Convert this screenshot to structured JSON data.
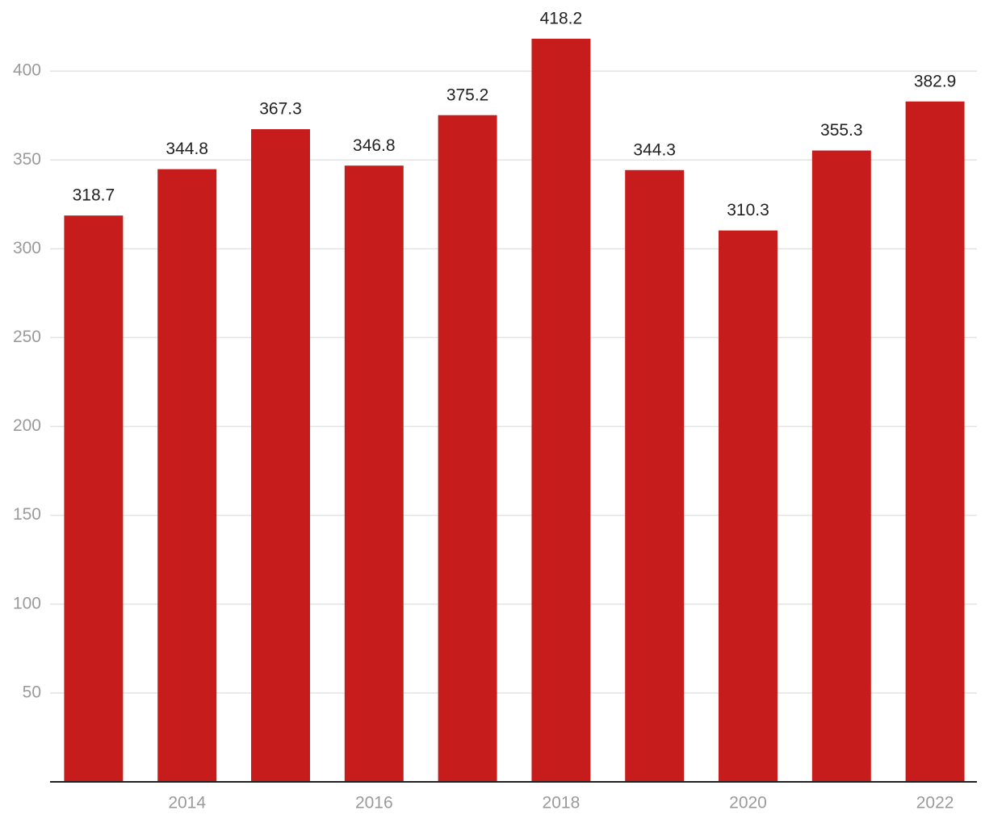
{
  "chart_data": {
    "type": "bar",
    "categories": [
      null,
      "2014",
      null,
      "2016",
      null,
      "2018",
      null,
      "2020",
      null,
      "2022"
    ],
    "values": [
      318.7,
      344.8,
      367.3,
      346.8,
      375.2,
      418.2,
      344.3,
      310.3,
      355.3,
      382.9
    ],
    "color": "#c71c1c",
    "ylim": [
      0,
      440
    ],
    "yticks": [
      50,
      100,
      150,
      200,
      250,
      300,
      350,
      400
    ],
    "grid": true
  }
}
